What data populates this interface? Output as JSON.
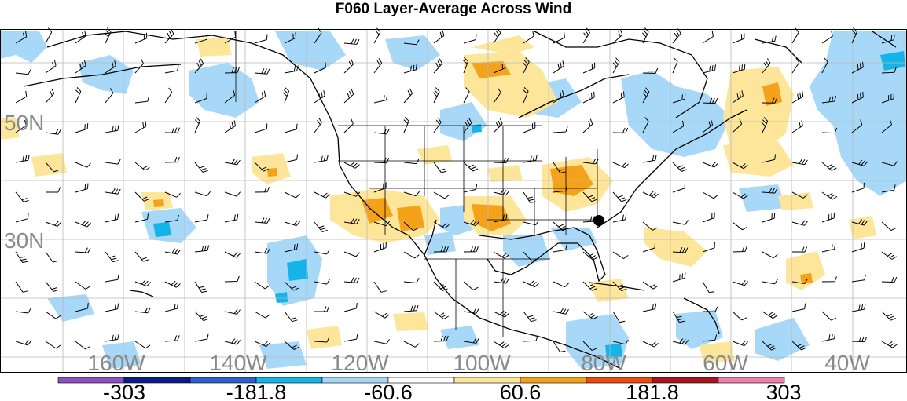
{
  "title": "F060 Layer-Average Across Wind",
  "map": {
    "lat_labels": [
      "50N",
      "30N"
    ],
    "lon_labels": [
      "160W",
      "140W",
      "120W",
      "100W",
      "80W",
      "60W",
      "40W"
    ],
    "gridline_color": "#b8b8b8",
    "coast_color": "#000000",
    "label_color": "#8a8a8a"
  },
  "colorbar": {
    "colors": [
      "#8c4fc4",
      "#0b1a86",
      "#2d5fd0",
      "#14b4e8",
      "#a8d8f8",
      "#ffffff",
      "#fde699",
      "#f5a21b",
      "#ee4a0e",
      "#a8161c",
      "#ef7ea8"
    ],
    "labels": [
      "-303",
      "-181.8",
      "-60.6",
      "60.6",
      "181.8",
      "303"
    ]
  }
}
